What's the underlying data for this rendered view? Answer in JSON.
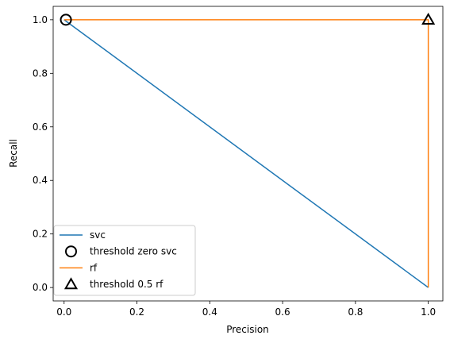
{
  "chart_data": {
    "type": "line",
    "title": "",
    "xlabel": "Precision",
    "ylabel": "Recall",
    "xlim": [
      -0.03,
      1.04
    ],
    "ylim": [
      -0.05,
      1.05
    ],
    "xticks": [
      "0.0",
      "0.2",
      "0.4",
      "0.6",
      "0.8",
      "1.0"
    ],
    "yticks": [
      "0.0",
      "0.2",
      "0.4",
      "0.6",
      "0.8",
      "1.0"
    ],
    "grid": false,
    "legend_position": "lower left",
    "series": [
      {
        "name": "svc",
        "kind": "line",
        "color": "#1f77b4",
        "x": [
          0.0,
          1.0,
          1.0
        ],
        "y": [
          1.0,
          0.0,
          0.0
        ]
      },
      {
        "name": "threshold zero svc",
        "kind": "marker",
        "marker": "circle",
        "color": "#000000",
        "x": [
          0.005
        ],
        "y": [
          1.0
        ]
      },
      {
        "name": "rf",
        "kind": "line",
        "color": "#ff7f0e",
        "x": [
          0.0,
          1.0,
          1.0
        ],
        "y": [
          1.0,
          1.0,
          0.0
        ]
      },
      {
        "name": "threshold 0.5 rf",
        "kind": "marker",
        "marker": "triangle",
        "color": "#000000",
        "x": [
          1.0
        ],
        "y": [
          1.0
        ]
      }
    ]
  }
}
